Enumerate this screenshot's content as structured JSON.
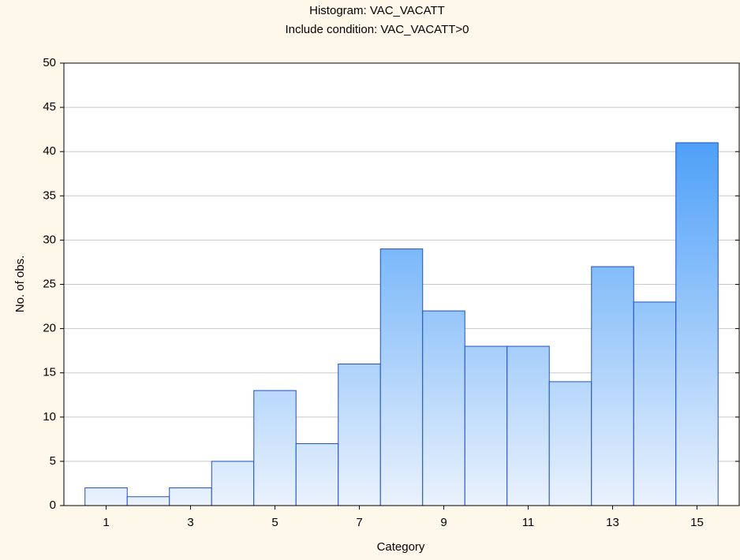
{
  "chart_data": {
    "type": "histogram",
    "title": "Histogram: VAC_VACATT",
    "subtitle": "Include condition: VAC_VACATT>0",
    "x_label": "Category",
    "y_label": "No. of obs.",
    "x": [
      1,
      2,
      3,
      4,
      5,
      6,
      7,
      8,
      9,
      10,
      11,
      12,
      13,
      14,
      15
    ],
    "values": [
      2,
      1,
      2,
      5,
      13,
      7,
      16,
      29,
      22,
      18,
      18,
      14,
      27,
      23,
      41
    ],
    "color": "#2b8ef7",
    "edgecolor": "#2050c0",
    "xlim": [
      0,
      16
    ],
    "xticks": [
      1,
      3,
      5,
      7,
      9,
      11,
      13,
      15
    ],
    "ylim": [
      0,
      50
    ],
    "yticks": [
      0,
      5,
      10,
      15,
      20,
      25,
      30,
      35,
      40,
      45,
      50
    ],
    "grid": true
  }
}
